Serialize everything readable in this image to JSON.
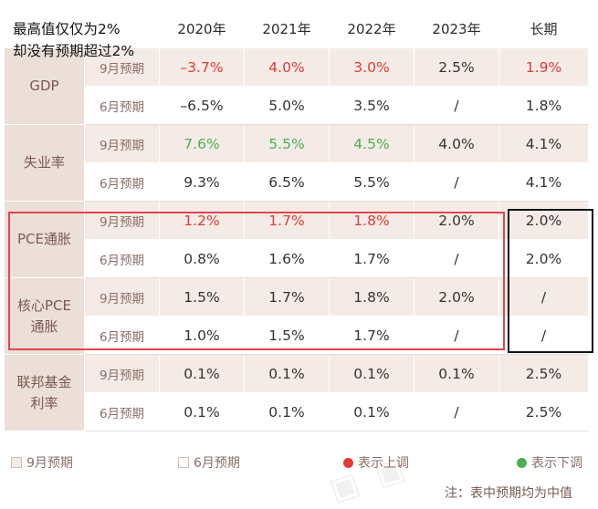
{
  "note": {
    "line1": "最高值仅仅为2%",
    "line2": "却没有预期超过2%"
  },
  "headers": [
    "2020年",
    "2021年",
    "2022年",
    "2023年",
    "长期"
  ],
  "sub_labels": {
    "sep": "9月预期",
    "jun": "6月预期"
  },
  "rows": {
    "gdp": {
      "label": "GDP",
      "sep": [
        "–3.7%",
        "4.0%",
        "3.0%",
        "2.5%",
        "1.9%"
      ],
      "jun": [
        "–6.5%",
        "5.0%",
        "3.5%",
        "/",
        "1.8%"
      ]
    },
    "unemployment": {
      "label_line1": "失业率",
      "sep": [
        "7.6%",
        "5.5%",
        "4.5%",
        "4.0%",
        "4.1%"
      ],
      "jun": [
        "9.3%",
        "6.5%",
        "5.5%",
        "/",
        "4.1%"
      ]
    },
    "pce": {
      "label_line1": "PCE通胀",
      "sep": [
        "1.2%",
        "1.7%",
        "1.8%",
        "2.0%",
        "2.0%"
      ],
      "jun": [
        "0.8%",
        "1.6%",
        "1.7%",
        "/",
        "2.0%"
      ]
    },
    "core_pce": {
      "label_line1": "核心PCE",
      "label_line2": "通胀",
      "sep": [
        "1.5%",
        "1.7%",
        "1.8%",
        "2.0%",
        "/"
      ],
      "jun": [
        "1.0%",
        "1.5%",
        "1.7%",
        "/",
        "/"
      ]
    },
    "fed_funds": {
      "label_line1": "联邦基金",
      "label_line2": "利率",
      "sep": [
        "0.1%",
        "0.1%",
        "0.1%",
        "0.1%",
        "2.5%"
      ],
      "jun": [
        "0.1%",
        "0.1%",
        "0.1%",
        "/",
        "2.5%"
      ]
    }
  },
  "legend": {
    "sep": "9月预期",
    "jun": "6月预期",
    "up": "表示上调",
    "down": "表示下调"
  },
  "footnote": "注：表中预期均为中值",
  "colors": {
    "up": "#e53935",
    "down": "#4caf50",
    "cat_bg": "#ecdfd8",
    "sep_bg": "#f4ebe6",
    "red_box": "#e0464e",
    "black_box": "#111111"
  }
}
